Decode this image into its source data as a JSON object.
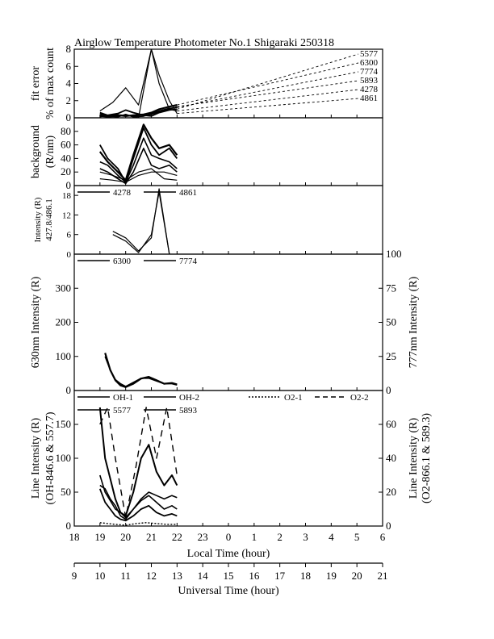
{
  "title": "Airglow Temperature Photometer No.1  Shigaraki  250318",
  "chart_data": [
    {
      "panel": "fit error",
      "type": "line",
      "ylabel": "fit error",
      "ylabel2": "% of max count",
      "ylim": [
        0,
        8
      ],
      "yticks": [
        "0",
        "2",
        "4",
        "6",
        "8"
      ],
      "x_unit": "local time (hour, continuing past 24 as 25..30)",
      "legend": [
        "5577",
        "6300",
        "7774",
        "5893",
        "4278",
        "4861"
      ],
      "series": [
        {
          "name": "5577",
          "x": [
            19.0,
            19.3,
            19.7,
            20.0,
            20.3,
            20.7,
            21.0,
            21.3,
            21.7,
            22.0
          ],
          "y": [
            0.6,
            0.3,
            0.5,
            0.9,
            0.6,
            0.3,
            0.2,
            0.6,
            0.9,
            1.0
          ]
        },
        {
          "name": "6300",
          "x": [
            19.0,
            19.3,
            19.7,
            20.0,
            20.3,
            20.7,
            21.0,
            21.3,
            21.7,
            22.0
          ],
          "y": [
            0.3,
            0.2,
            0.3,
            0.2,
            0.3,
            0.4,
            0.6,
            1.0,
            1.3,
            1.5
          ]
        },
        {
          "name": "7774",
          "x": [
            19.0,
            19.3,
            19.7,
            20.0,
            20.3,
            20.7,
            21.0,
            21.3,
            21.7,
            22.0
          ],
          "y": [
            0.2,
            0.1,
            0.2,
            0.3,
            0.2,
            0.2,
            0.5,
            0.8,
            1.1,
            1.2
          ]
        },
        {
          "name": "5893",
          "x": [
            19.0,
            19.3,
            19.7,
            20.0,
            20.3,
            20.7,
            21.0,
            21.3,
            21.7,
            22.0
          ],
          "y": [
            0.5,
            0.2,
            0.1,
            0.4,
            0.1,
            0.2,
            0.4,
            0.7,
            1.0,
            1.3
          ]
        },
        {
          "name": "4278",
          "x": [
            19.0,
            19.5,
            20.0,
            20.5,
            21.0,
            21.3,
            21.7,
            22.0
          ],
          "y": [
            0.8,
            1.8,
            3.5,
            1.5,
            8.0,
            4.0,
            1.0,
            0.8
          ]
        },
        {
          "name": "4861",
          "x": [
            19.0,
            19.5,
            20.0,
            20.5,
            21.0,
            21.3,
            21.7,
            22.0
          ],
          "y": [
            0.1,
            0.4,
            0.3,
            0.0,
            8.0,
            5.0,
            2.0,
            0.5
          ]
        }
      ]
    },
    {
      "panel": "background",
      "type": "line",
      "ylabel": "background",
      "ylabel2": "(R/nm)",
      "ylim": [
        0,
        100
      ],
      "yticks": [
        "0",
        "20",
        "40",
        "60",
        "80"
      ],
      "series": [
        {
          "name": "5577",
          "x": [
            19.0,
            19.3,
            19.7,
            20.0,
            20.3,
            20.7,
            21.0,
            21.3,
            21.7,
            22.0
          ],
          "y": [
            60,
            40,
            25,
            5,
            40,
            85,
            60,
            45,
            55,
            40
          ]
        },
        {
          "name": "6300",
          "x": [
            19.0,
            19.3,
            19.7,
            20.0,
            20.3,
            20.7,
            21.0,
            21.3,
            21.7,
            22.0
          ],
          "y": [
            50,
            35,
            20,
            8,
            45,
            90,
            70,
            55,
            60,
            45
          ]
        },
        {
          "name": "7774",
          "x": [
            19.0,
            19.3,
            19.7,
            20.0,
            20.3,
            20.7,
            21.0,
            21.3,
            21.7,
            22.0
          ],
          "y": [
            35,
            30,
            15,
            5,
            30,
            70,
            45,
            40,
            35,
            25
          ]
        },
        {
          "name": "5893",
          "x": [
            19.0,
            19.3,
            19.7,
            20.0,
            20.3,
            20.7,
            21.0,
            21.3,
            21.7,
            22.0
          ],
          "y": [
            25,
            20,
            10,
            3,
            20,
            55,
            30,
            25,
            30,
            20
          ]
        },
        {
          "name": "4278",
          "x": [
            19.0,
            19.5,
            20.0,
            20.5,
            21.0,
            21.5,
            22.0
          ],
          "y": [
            20,
            15,
            8,
            20,
            25,
            10,
            8
          ]
        },
        {
          "name": "4861",
          "x": [
            19.0,
            19.5,
            20.0,
            20.5,
            21.0,
            21.5,
            22.0
          ],
          "y": [
            10,
            8,
            5,
            15,
            20,
            20,
            15
          ]
        }
      ]
    },
    {
      "panel": "intensity 427.8/486.1",
      "type": "line",
      "ylabel": "Intensity (R)",
      "ylabel2": "427.8/486.1",
      "ylim": [
        0,
        21
      ],
      "yticks": [
        "0",
        "6",
        "12",
        "18"
      ],
      "legend": [
        "4278",
        "4861"
      ],
      "series": [
        {
          "name": "4278",
          "x": [
            19.5,
            20.0,
            20.5,
            21.0,
            21.3,
            21.7
          ],
          "y": [
            7,
            5,
            1,
            5,
            20,
            0
          ]
        },
        {
          "name": "4861",
          "x": [
            19.5,
            20.0,
            20.5,
            21.0,
            21.3,
            21.7
          ],
          "y": [
            6,
            4,
            0.5,
            6,
            19,
            0
          ]
        }
      ]
    },
    {
      "panel": "630nm / 777nm",
      "type": "line",
      "ylabel": "630nm Intensity (R)",
      "ylabel_right": "777nm Intensity (R)",
      "ylim": [
        0,
        400
      ],
      "ylim_right": [
        0,
        100
      ],
      "yticks": [
        "0",
        "100",
        "200",
        "300"
      ],
      "yticks_right": [
        "0",
        "25",
        "50",
        "75",
        "100"
      ],
      "legend": [
        "6300",
        "7774"
      ],
      "series": [
        {
          "name": "6300",
          "x": [
            19.2,
            19.4,
            19.6,
            19.8,
            20.0,
            20.3,
            20.6,
            20.9,
            21.2,
            21.5,
            21.8,
            22.0
          ],
          "y": [
            110,
            60,
            30,
            15,
            10,
            20,
            35,
            40,
            30,
            20,
            22,
            18
          ]
        },
        {
          "name": "7774",
          "x": [
            19.2,
            19.4,
            19.6,
            19.8,
            20.0,
            20.3,
            20.6,
            20.9,
            21.2,
            21.5,
            21.8,
            22.0
          ],
          "y": [
            25,
            15,
            8,
            5,
            3,
            6,
            9,
            9,
            7,
            5,
            5,
            4
          ]
        }
      ]
    },
    {
      "panel": "OH / OI / O2",
      "type": "line",
      "ylabel": "Line Intensity (R)",
      "ylabel2": "(OH-846.6 & 557.7)",
      "ylabel_right": "Line Intensity (R)",
      "ylabel_right2": "(O2-866.1 & 589.3)",
      "ylim": [
        0,
        200
      ],
      "ylim_right": [
        0,
        80
      ],
      "yticks": [
        "0",
        "50",
        "100",
        "150"
      ],
      "yticks_right": [
        "0",
        "20",
        "40",
        "60"
      ],
      "legend": [
        "OH-1",
        "OH-2",
        "O2-1",
        "O2-2",
        "5577",
        "5893"
      ],
      "series": [
        {
          "name": "OH-1",
          "x": [
            19.0,
            19.2,
            19.4,
            19.6,
            19.8,
            20.0,
            20.3,
            20.6,
            20.9,
            21.2,
            21.5,
            21.8,
            22.0
          ],
          "y": [
            175,
            100,
            70,
            40,
            20,
            15,
            50,
            100,
            120,
            80,
            60,
            75,
            60
          ]
        },
        {
          "name": "OH-2",
          "x": [
            19.0,
            19.2,
            19.4,
            19.6,
            19.8,
            20.0,
            20.3,
            20.6,
            20.9,
            21.2,
            21.5,
            21.8,
            22.0
          ],
          "y": [
            60,
            55,
            40,
            30,
            15,
            10,
            25,
            40,
            50,
            45,
            40,
            45,
            42
          ]
        },
        {
          "name": "O2-1",
          "x": [
            19.0,
            19.3,
            19.6,
            20.0,
            20.4,
            20.8,
            21.2,
            21.6,
            22.0
          ],
          "y": [
            2,
            1.5,
            1.0,
            0.5,
            1.5,
            2.0,
            1.5,
            1.0,
            1.0
          ]
        },
        {
          "name": "O2-2",
          "x": [
            19.0,
            19.3,
            19.6,
            20.0,
            20.4,
            20.8,
            21.2,
            21.6,
            22.0
          ],
          "y": [
            60,
            70,
            40,
            5,
            35,
            70,
            40,
            70,
            30
          ]
        },
        {
          "name": "5577",
          "x": [
            19.0,
            19.2,
            19.4,
            19.6,
            19.8,
            20.0,
            20.3,
            20.6,
            20.9,
            21.2,
            21.5,
            21.8,
            22.0
          ],
          "y": [
            55,
            35,
            25,
            15,
            10,
            8,
            15,
            25,
            30,
            20,
            15,
            18,
            15
          ]
        },
        {
          "name": "5893",
          "x": [
            19.0,
            19.2,
            19.4,
            19.6,
            19.8,
            20.0,
            20.3,
            20.6,
            20.9,
            21.2,
            21.5,
            21.8,
            22.0
          ],
          "y": [
            30,
            20,
            15,
            10,
            8,
            5,
            10,
            15,
            18,
            14,
            10,
            12,
            10
          ]
        }
      ]
    }
  ],
  "x_axis_local": {
    "label": "Local Time (hour)",
    "ticks": [
      "18",
      "19",
      "20",
      "21",
      "22",
      "23",
      "0",
      "1",
      "2",
      "3",
      "4",
      "5",
      "6"
    ]
  },
  "x_axis_ut": {
    "label": "Universal Time (hour)",
    "ticks": [
      "9",
      "10",
      "11",
      "12",
      "13",
      "14",
      "15",
      "16",
      "17",
      "18",
      "19",
      "20",
      "21"
    ]
  }
}
